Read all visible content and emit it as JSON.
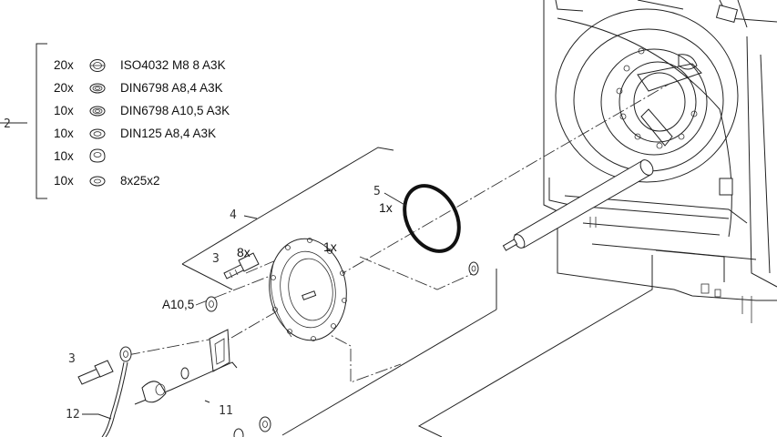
{
  "legend": {
    "group_callout": "2",
    "rows": [
      {
        "qty": "20x",
        "icon": "hex-nut-icon",
        "spec": "ISO4032 M8 8 A3K"
      },
      {
        "qty": "20x",
        "icon": "lock-washer-icon",
        "spec": "DIN6798 A8,4 A3K"
      },
      {
        "qty": "10x",
        "icon": "lock-washer-icon",
        "spec": "DIN6798 A10,5 A3K"
      },
      {
        "qty": "10x",
        "icon": "flat-washer-icon",
        "spec": "DIN125 A8,4 A3K"
      },
      {
        "qty": "10x",
        "icon": "dome-washer-icon",
        "spec": ""
      },
      {
        "qty": "10x",
        "icon": "flat-washer-icon",
        "spec": "8x25x2"
      }
    ]
  },
  "callouts": {
    "c3_upper": "3",
    "c3_lower": "3",
    "c4": "4",
    "c5": "5",
    "c11": "11",
    "c12": "12"
  },
  "quantities": {
    "bolts_8x": "8x",
    "flange_1x": "1x",
    "oring_1x": "1x"
  },
  "labels": {
    "washer_a105": "A10,5"
  }
}
